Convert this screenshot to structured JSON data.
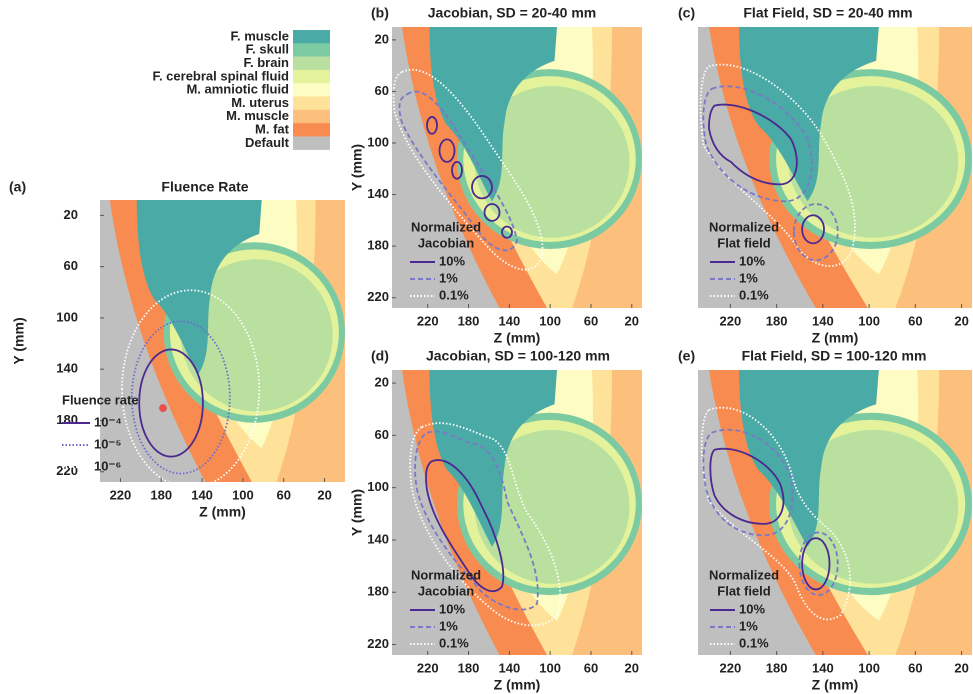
{
  "tissue_legend": [
    {
      "label": "F. muscle",
      "color": "#4aaaa5"
    },
    {
      "label": "F. skull",
      "color": "#7ccaa2"
    },
    {
      "label": "F. brain",
      "color": "#b9e09e"
    },
    {
      "label": "F. cerebral spinal fluid",
      "color": "#e4f39b"
    },
    {
      "label": "M. amniotic fluid",
      "color": "#fdfcc2"
    },
    {
      "label": "M. uterus",
      "color": "#fee29a"
    },
    {
      "label": "M. muscle",
      "color": "#fcc07c"
    },
    {
      "label": "M. fat",
      "color": "#f88c50"
    },
    {
      "label": "Default",
      "color": "#bfbfbf"
    }
  ],
  "panels": [
    {
      "tag": "(a)",
      "title": "Fluence Rate",
      "xlabel": "Z (mm)",
      "ylabel": "Y (mm)",
      "xlim": [
        240,
        0
      ],
      "xticks": [
        220,
        180,
        140,
        100,
        60,
        20
      ],
      "ylim": [
        8,
        228
      ],
      "yticks": [
        20,
        60,
        100,
        140,
        180,
        220
      ],
      "legend_title": [
        "Fluence rate"
      ],
      "legend": [
        {
          "label": "10⁻⁴",
          "color": "#4b2991",
          "style": "solid"
        },
        {
          "label": "10⁻⁵",
          "color": "#6d6acb",
          "style": "dotted"
        },
        {
          "label": "10⁻⁶",
          "color": "#ffffff",
          "style": "dotted"
        }
      ]
    },
    {
      "tag": "(b)",
      "title": "Jacobian, SD = 20-40 mm",
      "xlabel": "Z (mm)",
      "ylabel": "Y (mm)",
      "xlim": [
        255,
        10
      ],
      "xticks": [
        220,
        180,
        140,
        100,
        60,
        20
      ],
      "ylim": [
        10,
        228
      ],
      "yticks": [
        20,
        60,
        100,
        140,
        180,
        220
      ],
      "legend_title": [
        "Normalized",
        "Jacobian"
      ],
      "legend": [
        {
          "label": "10%",
          "color": "#4b2991",
          "style": "solid"
        },
        {
          "label": "1%",
          "color": "#7b78c8",
          "style": "dashed"
        },
        {
          "label": "0.1%",
          "color": "#ffffff",
          "style": "dotted"
        }
      ]
    },
    {
      "tag": "(c)",
      "title": "Flat Field, SD = 20-40 mm",
      "xlabel": "Z (mm)",
      "xlim": [
        248,
        11
      ],
      "xticks": [
        220,
        180,
        140,
        100,
        60,
        20
      ],
      "legend_title": [
        "Normalized",
        "Flat field"
      ],
      "legend": [
        {
          "label": "10%",
          "color": "#4b2991",
          "style": "solid"
        },
        {
          "label": "1%",
          "color": "#7b78c8",
          "style": "dashed"
        },
        {
          "label": "0.1%",
          "color": "#ffffff",
          "style": "dotted"
        }
      ]
    },
    {
      "tag": "(d)",
      "title": "Jacobian, SD = 100-120 mm",
      "xlabel": "Z (mm)",
      "ylabel": "Y (mm)",
      "xlim": [
        255,
        10
      ],
      "xticks": [
        220,
        180,
        140,
        100,
        60,
        20
      ],
      "ylim": [
        10,
        228
      ],
      "yticks": [
        20,
        60,
        100,
        140,
        180,
        220
      ],
      "legend_title": [
        "Normalized",
        "Jacobian"
      ],
      "legend": [
        {
          "label": "10%",
          "color": "#4b2991",
          "style": "solid"
        },
        {
          "label": "1%",
          "color": "#7b78c8",
          "style": "dashed"
        },
        {
          "label": "0.1%",
          "color": "#ffffff",
          "style": "dotted"
        }
      ]
    },
    {
      "tag": "(e)",
      "title": "Flat Field, SD = 100-120 mm",
      "xlabel": "Z (mm)",
      "xlim": [
        248,
        11
      ],
      "xticks": [
        220,
        180,
        140,
        100,
        60,
        20
      ],
      "legend_title": [
        "Normalized",
        "Flat field"
      ],
      "legend": [
        {
          "label": "10%",
          "color": "#4b2991",
          "style": "solid"
        },
        {
          "label": "1%",
          "color": "#7b78c8",
          "style": "dashed"
        },
        {
          "label": "0.1%",
          "color": "#ffffff",
          "style": "dotted"
        }
      ]
    }
  ]
}
